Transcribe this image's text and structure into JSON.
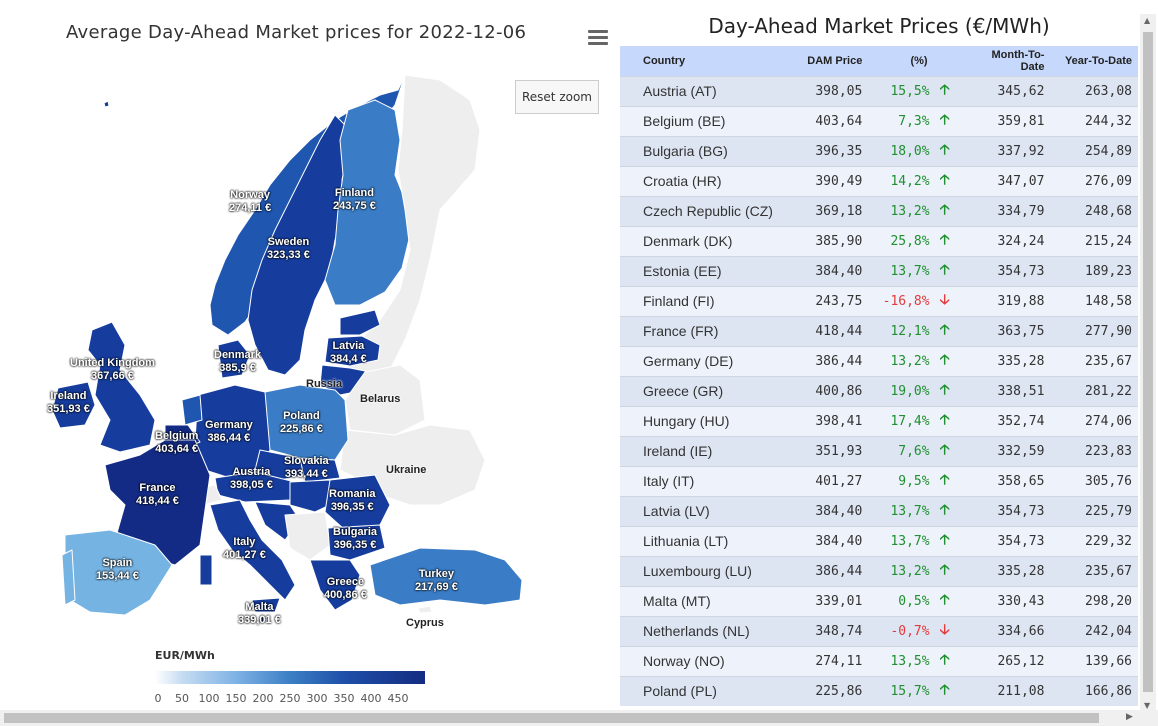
{
  "map": {
    "title": "Average Day-Ahead Market prices for 2022-12-06",
    "reset_zoom_label": "Reset zoom",
    "menu_icon": "hamburger-icon",
    "legend_title": "EUR/MWh",
    "legend_ticks": [
      "0",
      "50",
      "100",
      "150",
      "200",
      "250",
      "300",
      "350",
      "400",
      "450"
    ],
    "labels": {
      "norway": {
        "name": "Norway",
        "value": "274,11 €"
      },
      "finland": {
        "name": "Finland",
        "value": "243,75 €"
      },
      "sweden": {
        "name": "Sweden",
        "value": "323,33 €"
      },
      "latvia": {
        "name": "Latvia",
        "value": "384,4 €"
      },
      "denmark": {
        "name": "Denmark",
        "value": "385,9 €"
      },
      "uk": {
        "name": "United Kingdom",
        "value": "367,66 €"
      },
      "ireland": {
        "name": "Ireland",
        "value": "351,93 €"
      },
      "poland": {
        "name": "Poland",
        "value": "225,86 €"
      },
      "germany": {
        "name": "Germany",
        "value": "386,44 €"
      },
      "belgium": {
        "name": "Belgium",
        "value": "403,64 €"
      },
      "slovakia": {
        "name": "Slovakia",
        "value": "393,44 €"
      },
      "austria": {
        "name": "Austria",
        "value": "398,05 €"
      },
      "france": {
        "name": "France",
        "value": "418,44 €"
      },
      "romania": {
        "name": "Romania",
        "value": "396,35 €"
      },
      "bulgaria": {
        "name": "Bulgaria",
        "value": "396,35 €"
      },
      "italy": {
        "name": "Italy",
        "value": "401,27 €"
      },
      "spain": {
        "name": "Spain",
        "value": "153,44 €"
      },
      "greece": {
        "name": "Greece",
        "value": "400,86 €"
      },
      "turkey": {
        "name": "Turkey",
        "value": "217,69 €"
      },
      "malta": {
        "name": "Malta",
        "value": "339,01 €"
      }
    },
    "plain_labels": {
      "russia": "Russia",
      "belarus": "Belarus",
      "ukraine": "Ukraine",
      "cyprus": "Cyprus"
    },
    "colors": {
      "very_dark": "#132b85",
      "dark": "#163d9e",
      "mid_dark": "#1f56b0",
      "mid": "#3a7cc6",
      "light": "#75b3e3",
      "no_data": "#eeeeee"
    }
  },
  "table": {
    "title": "Day-Ahead Market Prices (€/MWh)",
    "headers": {
      "country": "Country",
      "dam": "DAM Price",
      "pct": "(%)",
      "mtd": "Month-To-Date",
      "ytd": "Year-To-Date"
    },
    "rows": [
      {
        "country": "Austria (AT)",
        "dam": "398,05",
        "pct": "15,5%",
        "dir": "up",
        "mtd": "345,62",
        "ytd": "263,08"
      },
      {
        "country": "Belgium (BE)",
        "dam": "403,64",
        "pct": "7,3%",
        "dir": "up",
        "mtd": "359,81",
        "ytd": "244,32"
      },
      {
        "country": "Bulgaria (BG)",
        "dam": "396,35",
        "pct": "18,0%",
        "dir": "up",
        "mtd": "337,92",
        "ytd": "254,89"
      },
      {
        "country": "Croatia (HR)",
        "dam": "390,49",
        "pct": "14,2%",
        "dir": "up",
        "mtd": "347,07",
        "ytd": "276,09"
      },
      {
        "country": "Czech Republic (CZ)",
        "dam": "369,18",
        "pct": "13,2%",
        "dir": "up",
        "mtd": "334,79",
        "ytd": "248,68"
      },
      {
        "country": "Denmark (DK)",
        "dam": "385,90",
        "pct": "25,8%",
        "dir": "up",
        "mtd": "324,24",
        "ytd": "215,24"
      },
      {
        "country": "Estonia (EE)",
        "dam": "384,40",
        "pct": "13,7%",
        "dir": "up",
        "mtd": "354,73",
        "ytd": "189,23"
      },
      {
        "country": "Finland (FI)",
        "dam": "243,75",
        "pct": "-16,8%",
        "dir": "down",
        "mtd": "319,88",
        "ytd": "148,58"
      },
      {
        "country": "France (FR)",
        "dam": "418,44",
        "pct": "12,1%",
        "dir": "up",
        "mtd": "363,75",
        "ytd": "277,90"
      },
      {
        "country": "Germany (DE)",
        "dam": "386,44",
        "pct": "13,2%",
        "dir": "up",
        "mtd": "335,28",
        "ytd": "235,67"
      },
      {
        "country": "Greece (GR)",
        "dam": "400,86",
        "pct": "19,0%",
        "dir": "up",
        "mtd": "338,51",
        "ytd": "281,22"
      },
      {
        "country": "Hungary (HU)",
        "dam": "398,41",
        "pct": "17,4%",
        "dir": "up",
        "mtd": "352,74",
        "ytd": "274,06"
      },
      {
        "country": "Ireland (IE)",
        "dam": "351,93",
        "pct": "7,6%",
        "dir": "up",
        "mtd": "332,59",
        "ytd": "223,83"
      },
      {
        "country": "Italy (IT)",
        "dam": "401,27",
        "pct": "9,5%",
        "dir": "up",
        "mtd": "358,65",
        "ytd": "305,76"
      },
      {
        "country": "Latvia (LV)",
        "dam": "384,40",
        "pct": "13,7%",
        "dir": "up",
        "mtd": "354,73",
        "ytd": "225,79"
      },
      {
        "country": "Lithuania (LT)",
        "dam": "384,40",
        "pct": "13,7%",
        "dir": "up",
        "mtd": "354,73",
        "ytd": "229,32"
      },
      {
        "country": "Luxembourg (LU)",
        "dam": "386,44",
        "pct": "13,2%",
        "dir": "up",
        "mtd": "335,28",
        "ytd": "235,67"
      },
      {
        "country": "Malta (MT)",
        "dam": "339,01",
        "pct": "0,5%",
        "dir": "up",
        "mtd": "330,43",
        "ytd": "298,20"
      },
      {
        "country": "Netherlands (NL)",
        "dam": "348,74",
        "pct": "-0,7%",
        "dir": "down",
        "mtd": "334,66",
        "ytd": "242,04"
      },
      {
        "country": "Norway (NO)",
        "dam": "274,11",
        "pct": "13,5%",
        "dir": "up",
        "mtd": "265,12",
        "ytd": "139,66"
      },
      {
        "country": "Poland (PL)",
        "dam": "225,86",
        "pct": "15,7%",
        "dir": "up",
        "mtd": "211,08",
        "ytd": "166,86"
      }
    ],
    "arrow_up": "🡡",
    "arrow_down": "🡣"
  }
}
